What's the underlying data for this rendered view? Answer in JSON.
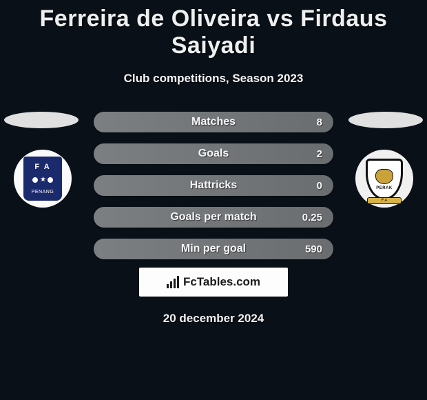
{
  "title": "Ferreira de Oliveira vs Firdaus Saiyadi",
  "subtitle": "Club competitions, Season 2023",
  "date": "20 december 2024",
  "attribution": "FcTables.com",
  "colors": {
    "background": "#091018",
    "text": "#e8e8e8",
    "stat_bar_start": "#7c7f82",
    "stat_bar_end": "#6a6d70",
    "badge_left_primary": "#1a2a6c",
    "badge_right_accent": "#c9a23a",
    "logo_box_bg": "#fdfdfd"
  },
  "players": {
    "left": {
      "name": "Ferreira de Oliveira",
      "club_badge": {
        "top_text": "F A",
        "bottom_text": "PENANG",
        "primary_color": "#1a2a6c"
      }
    },
    "right": {
      "name": "Firdaus Saiyadi",
      "club_badge": {
        "banner_text": "PERAK",
        "ribbon_text": "F.A",
        "accent_color": "#c9a23a"
      }
    }
  },
  "stats": [
    {
      "label": "Matches",
      "value": "8"
    },
    {
      "label": "Goals",
      "value": "2"
    },
    {
      "label": "Hattricks",
      "value": "0"
    },
    {
      "label": "Goals per match",
      "value": "0.25"
    },
    {
      "label": "Min per goal",
      "value": "590"
    }
  ]
}
